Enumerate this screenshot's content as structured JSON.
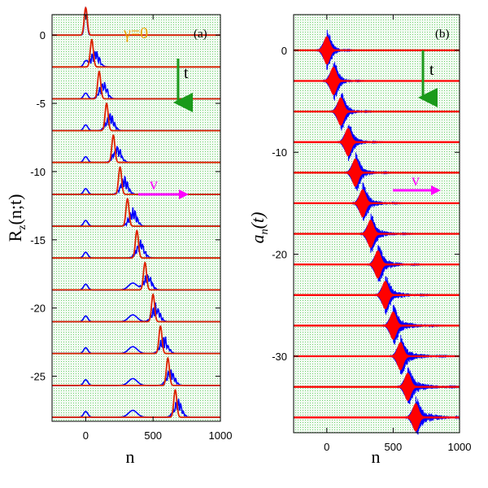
{
  "chart_data": [
    {
      "type": "line",
      "panel_tag": "(a)",
      "ylabel": "R_z(n;t)",
      "ylabel_main": "R",
      "ylabel_sub": "z",
      "ylabel_rest": "(n;t)",
      "xlabel": "n",
      "xlim": [
        -250,
        1000
      ],
      "ylim": [
        -28.3,
        1.5
      ],
      "x_ticks": [
        0,
        500,
        1000
      ],
      "y_ticks": [
        0,
        -5,
        -10,
        -15,
        -20,
        -25
      ],
      "x_tick_labels": [
        "0",
        "500",
        "1000"
      ],
      "y_tick_labels": [
        "0",
        "-5",
        "-10",
        "-15",
        "-20",
        "-25"
      ],
      "annotations": {
        "gamma": "γ=0",
        "time_arrow": "t",
        "velocity_arrow": "v"
      },
      "baselines": [
        0,
        -2.33,
        -4.67,
        -7.0,
        -9.33,
        -11.67,
        -14.0,
        -16.33,
        -18.67,
        -21.0,
        -23.33,
        -25.67,
        -28.0
      ],
      "series": [
        {
          "color": "#0000ff",
          "peak_x": [
            0,
            50,
            110,
            160,
            215,
            265,
            330,
            385,
            440,
            500,
            560,
            610,
            665
          ]
        },
        {
          "color": "#dd2200",
          "peak_x": [
            0,
            45,
            100,
            155,
            205,
            255,
            310,
            380,
            440,
            500,
            555,
            610,
            665
          ]
        }
      ]
    },
    {
      "type": "line",
      "panel_tag": "(b)",
      "ylabel": "a_n(t)",
      "ylabel_main": "a",
      "ylabel_sub": "n",
      "ylabel_rest": "(t)",
      "xlabel": "n",
      "xlim": [
        -250,
        1000
      ],
      "ylim": [
        -37.5,
        3.5
      ],
      "x_ticks": [
        0,
        500,
        1000
      ],
      "y_ticks": [
        0,
        -10,
        -20,
        -30
      ],
      "x_tick_labels": [
        "0",
        "500",
        "1000"
      ],
      "y_tick_labels": [
        "0",
        "-10",
        "-20",
        "-30"
      ],
      "annotations": {
        "time_arrow": "t",
        "velocity_arrow": "v"
      },
      "baselines": [
        0,
        -3,
        -6,
        -9,
        -12,
        -15,
        -18,
        -21,
        -24,
        -27,
        -30,
        -33,
        -36
      ],
      "series": [
        {
          "color": "#0000ff",
          "packet_center_x": [
            0,
            50,
            105,
            160,
            215,
            270,
            330,
            385,
            440,
            500,
            555,
            610,
            670
          ]
        },
        {
          "color": "#ff0000",
          "packet_center_x": [
            0,
            50,
            105,
            160,
            215,
            270,
            330,
            385,
            440,
            500,
            555,
            610,
            670
          ]
        }
      ]
    }
  ]
}
